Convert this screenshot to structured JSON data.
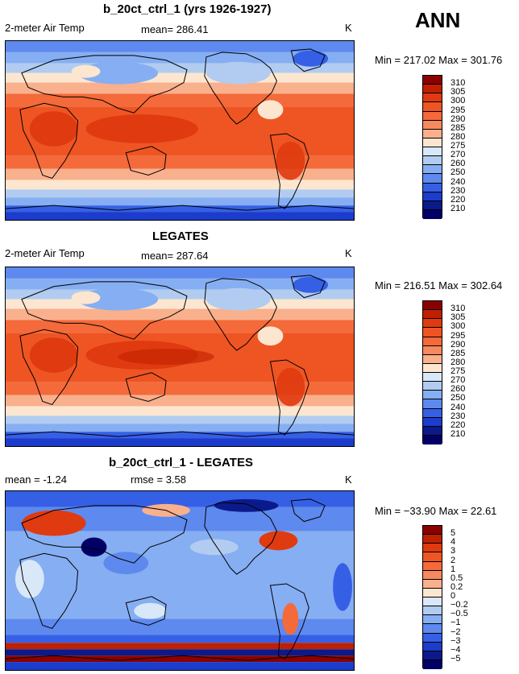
{
  "header": {
    "season": "ANN"
  },
  "panels": [
    {
      "title": "b_20ct_ctrl_1 (yrs 1926-1927)",
      "left_label": "2-meter Air Temp",
      "stat": "mean= 286.41",
      "units": "K",
      "minmax": "Min = 217.02 Max = 301.76",
      "colorbar": {
        "labels": [
          "310",
          "305",
          "300",
          "295",
          "290",
          "285",
          "280",
          "275",
          "270",
          "260",
          "250",
          "240",
          "230",
          "220",
          "210"
        ],
        "colors": [
          "#8b0000",
          "#c02000",
          "#e03a10",
          "#ee5523",
          "#f46a3a",
          "#f7895f",
          "#f9b08d",
          "#fde6d0",
          "#d9e8f8",
          "#b1ccf0",
          "#86aef2",
          "#5e89ee",
          "#3560e6",
          "#1c3ccc",
          "#0b1a8a",
          "#000066"
        ]
      }
    },
    {
      "title": "LEGATES",
      "left_label": "2-meter Air Temp",
      "stat": "mean= 287.64",
      "units": "K",
      "minmax": "Min = 216.51 Max = 302.64",
      "colorbar": {
        "labels": [
          "310",
          "305",
          "300",
          "295",
          "290",
          "285",
          "280",
          "275",
          "270",
          "260",
          "250",
          "240",
          "230",
          "220",
          "210"
        ],
        "colors": [
          "#8b0000",
          "#c02000",
          "#e03a10",
          "#ee5523",
          "#f46a3a",
          "#f7895f",
          "#f9b08d",
          "#fde6d0",
          "#d9e8f8",
          "#b1ccf0",
          "#86aef2",
          "#5e89ee",
          "#3560e6",
          "#1c3ccc",
          "#0b1a8a",
          "#000066"
        ]
      }
    },
    {
      "title": "b_20ct_ctrl_1 - LEGATES",
      "left_label": "mean =   -1.24",
      "stat": "rmse =    3.58",
      "units": "K",
      "minmax": "Min = −33.90 Max =   22.61",
      "colorbar": {
        "labels": [
          "5",
          "4",
          "3",
          "2",
          "1",
          "0.5",
          "0.2",
          "0",
          "−0.2",
          "−0.5",
          "−1",
          "−2",
          "−3",
          "−4",
          "−5"
        ],
        "colors": [
          "#8b0000",
          "#c02000",
          "#e03a10",
          "#ee5523",
          "#f46a3a",
          "#f7895f",
          "#f9b08d",
          "#fde6d0",
          "#d9e8f8",
          "#b1ccf0",
          "#86aef2",
          "#5e89ee",
          "#3560e6",
          "#1c3ccc",
          "#0b1a8a",
          "#000066"
        ]
      }
    }
  ]
}
